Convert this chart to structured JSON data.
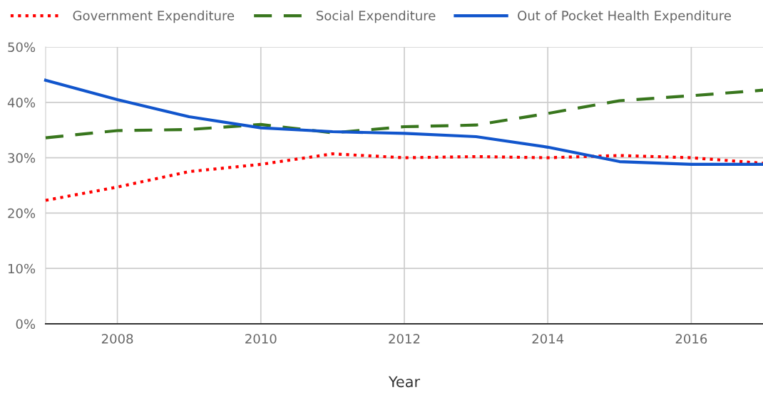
{
  "chart_data": {
    "type": "line",
    "xlabel": "Year",
    "x": [
      2007,
      2008,
      2009,
      2010,
      2011,
      2012,
      2013,
      2014,
      2015,
      2016,
      2017
    ],
    "series": [
      {
        "name": "Government Expenditure",
        "color": "#ff0000",
        "line_style": "dotted",
        "values": [
          22.3,
          24.7,
          27.5,
          28.8,
          30.7,
          30.0,
          30.2,
          30.0,
          30.4,
          30.0,
          29.0
        ]
      },
      {
        "name": "Social Expenditure",
        "color": "#38761d",
        "line_style": "dashed",
        "values": [
          33.6,
          34.9,
          35.1,
          36.0,
          34.5,
          35.6,
          35.9,
          38.0,
          40.3,
          41.2,
          42.2
        ]
      },
      {
        "name": "Out of Pocket Health Expenditure",
        "color": "#1155cc",
        "line_style": "solid",
        "values": [
          44.0,
          40.5,
          37.4,
          35.4,
          34.7,
          34.4,
          33.8,
          31.9,
          29.3,
          28.8,
          28.8
        ]
      }
    ],
    "xlim": [
      2007,
      2017
    ],
    "xticks": [
      2008,
      2010,
      2012,
      2014,
      2016
    ],
    "ylim": [
      0,
      50
    ],
    "yticks": [
      {
        "value": 0,
        "label": "0%"
      },
      {
        "value": 10,
        "label": "10%"
      },
      {
        "value": 20,
        "label": "20%"
      },
      {
        "value": 30,
        "label": "30%"
      },
      {
        "value": 40,
        "label": "40%"
      },
      {
        "value": 50,
        "label": "50%"
      }
    ],
    "grid": true,
    "legend": "top left",
    "marker": "none"
  }
}
